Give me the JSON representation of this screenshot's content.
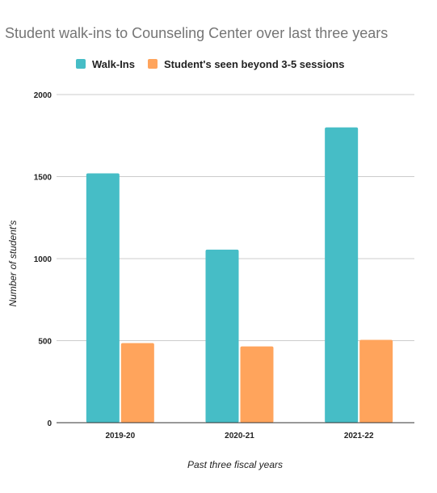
{
  "chart_data": {
    "type": "bar",
    "title": "Student walk-ins to Counseling Center over last three years",
    "xlabel": "Past three fiscal years",
    "ylabel": "Number of student's",
    "categories": [
      "2019-20",
      "2020-21",
      "2021-22"
    ],
    "series": [
      {
        "name": "Walk-Ins",
        "values": [
          1520,
          1055,
          1800
        ],
        "color": "#46bdc6"
      },
      {
        "name": "Student's seen beyond 3-5 sessions",
        "values": [
          485,
          465,
          505
        ],
        "color": "#ffa45c"
      }
    ],
    "ylim": [
      0,
      2000
    ],
    "yticks": [
      "0",
      "500",
      "1000",
      "1500",
      "2000"
    ],
    "grid": true,
    "legend_position": "top"
  }
}
